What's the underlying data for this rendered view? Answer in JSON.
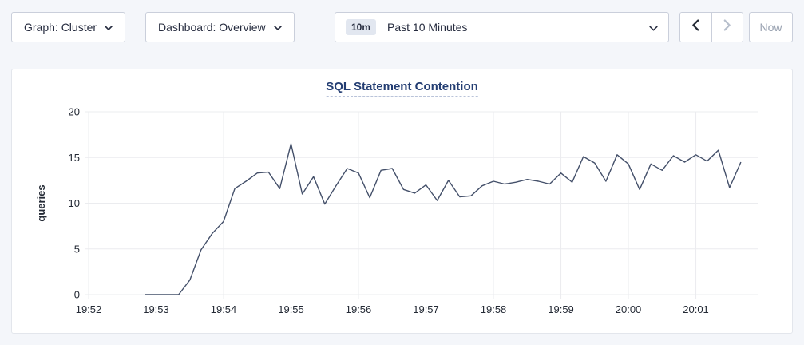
{
  "toolbar": {
    "graph_dropdown": {
      "label": "Graph: Cluster"
    },
    "dashboard_dropdown": {
      "label": "Dashboard: Overview"
    },
    "time_selector": {
      "badge": "10m",
      "label": "Past 10 Minutes"
    },
    "back_button": {
      "enabled": true
    },
    "forward_button": {
      "enabled": false
    },
    "now_button": {
      "label": "Now",
      "enabled": false
    }
  },
  "chart_data": {
    "type": "line",
    "title": "SQL Statement Contention",
    "xlabel": "",
    "ylabel": "queries",
    "ylim": [
      0,
      20
    ],
    "yticks": [
      0,
      5,
      10,
      15,
      20
    ],
    "xticks": [
      "19:52",
      "19:53",
      "19:54",
      "19:55",
      "19:56",
      "19:57",
      "19:58",
      "19:59",
      "20:00",
      "20:01"
    ],
    "x_domain_seconds": [
      0,
      595
    ],
    "x_tick_interval_seconds": 60,
    "grid": true,
    "legend": false,
    "series": [
      {
        "name": "queries",
        "start_offset_seconds": 50,
        "step_seconds": 10,
        "values": [
          0,
          0,
          0,
          0,
          1.6,
          4.9,
          6.7,
          8,
          11.6,
          12.4,
          13.3,
          13.4,
          11.6,
          16.5,
          11,
          12.9,
          9.9,
          11.9,
          13.8,
          13.3,
          10.6,
          13.6,
          13.8,
          11.5,
          11.1,
          12,
          10.3,
          12.5,
          10.7,
          10.8,
          11.9,
          12.4,
          12.1,
          12.3,
          12.6,
          12.4,
          12.1,
          13.3,
          12.3,
          15.1,
          14.4,
          12.4,
          15.3,
          14.3,
          11.5,
          14.3,
          13.6,
          15.2,
          14.5,
          15.3,
          14.6,
          15.8,
          11.7,
          14.5
        ]
      }
    ]
  },
  "colors": {
    "page_background": "#f4f6fa",
    "line": "#44506a",
    "grid": "#ebecef",
    "axis_text": "#242a35",
    "title_text": "#233d72",
    "badge_background": "#e2e7f0",
    "disabled_text": "#98a1b0",
    "button_border": "#cacfdb"
  }
}
